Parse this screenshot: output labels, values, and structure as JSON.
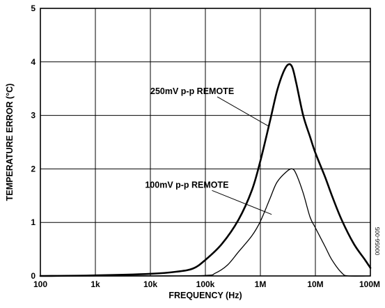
{
  "chart_data": {
    "type": "line",
    "xlabel": "FREQUENCY (Hz)",
    "ylabel": "TEMPERATURE ERROR (°C)",
    "xscale": "log",
    "xlim": [
      100,
      100000000
    ],
    "ylim": [
      0,
      5
    ],
    "grid": true,
    "x_ticks": [
      100,
      1000,
      10000,
      100000,
      1000000,
      10000000,
      100000000
    ],
    "x_tick_labels": [
      "100",
      "1k",
      "10k",
      "100k",
      "1M",
      "10M",
      "100M"
    ],
    "y_ticks": [
      0,
      1,
      2,
      3,
      4,
      5
    ],
    "y_tick_labels": [
      "0",
      "1",
      "2",
      "3",
      "4",
      "5"
    ],
    "figure_code": "00056-005",
    "series": [
      {
        "name": "250mV p-p REMOTE",
        "points": [
          [
            100,
            0.0
          ],
          [
            1000,
            0.01
          ],
          [
            10000,
            0.04
          ],
          [
            30000,
            0.08
          ],
          [
            60000,
            0.14
          ],
          [
            100000,
            0.3
          ],
          [
            200000,
            0.6
          ],
          [
            400000,
            1.05
          ],
          [
            700000,
            1.6
          ],
          [
            1000000,
            2.15
          ],
          [
            1500000,
            2.9
          ],
          [
            2000000,
            3.45
          ],
          [
            2600000,
            3.8
          ],
          [
            3200000,
            3.95
          ],
          [
            3800000,
            3.9
          ],
          [
            4500000,
            3.6
          ],
          [
            6000000,
            3.0
          ],
          [
            8000000,
            2.6
          ],
          [
            10000000,
            2.3
          ],
          [
            15000000,
            1.85
          ],
          [
            20000000,
            1.5
          ],
          [
            30000000,
            1.05
          ],
          [
            50000000,
            0.6
          ],
          [
            80000000,
            0.3
          ],
          [
            100000000,
            0.15
          ]
        ]
      },
      {
        "name": "100mV p-p REMOTE",
        "points": [
          [
            100,
            0.0
          ],
          [
            10000,
            0.0
          ],
          [
            100000,
            0.01
          ],
          [
            150000,
            0.05
          ],
          [
            250000,
            0.2
          ],
          [
            400000,
            0.45
          ],
          [
            700000,
            0.75
          ],
          [
            1000000,
            1.02
          ],
          [
            1500000,
            1.45
          ],
          [
            2000000,
            1.75
          ],
          [
            3000000,
            1.95
          ],
          [
            3800000,
            2.0
          ],
          [
            4500000,
            1.9
          ],
          [
            6000000,
            1.55
          ],
          [
            8000000,
            1.1
          ],
          [
            10000000,
            0.9
          ],
          [
            15000000,
            0.55
          ],
          [
            20000000,
            0.3
          ],
          [
            30000000,
            0.06
          ],
          [
            40000000,
            0.0
          ],
          [
            100000000,
            0.0
          ]
        ]
      }
    ],
    "annotations": [
      {
        "text": "250mV p-p REMOTE",
        "series": 0,
        "x": 10000,
        "y": 3.4,
        "point_x": 1400000,
        "point_y": 2.8,
        "anchor": "start"
      },
      {
        "text": "100mV p-p REMOTE",
        "series": 1,
        "x": 8000,
        "y": 1.65,
        "point_x": 1600000,
        "point_y": 1.15,
        "anchor": "start"
      }
    ]
  }
}
